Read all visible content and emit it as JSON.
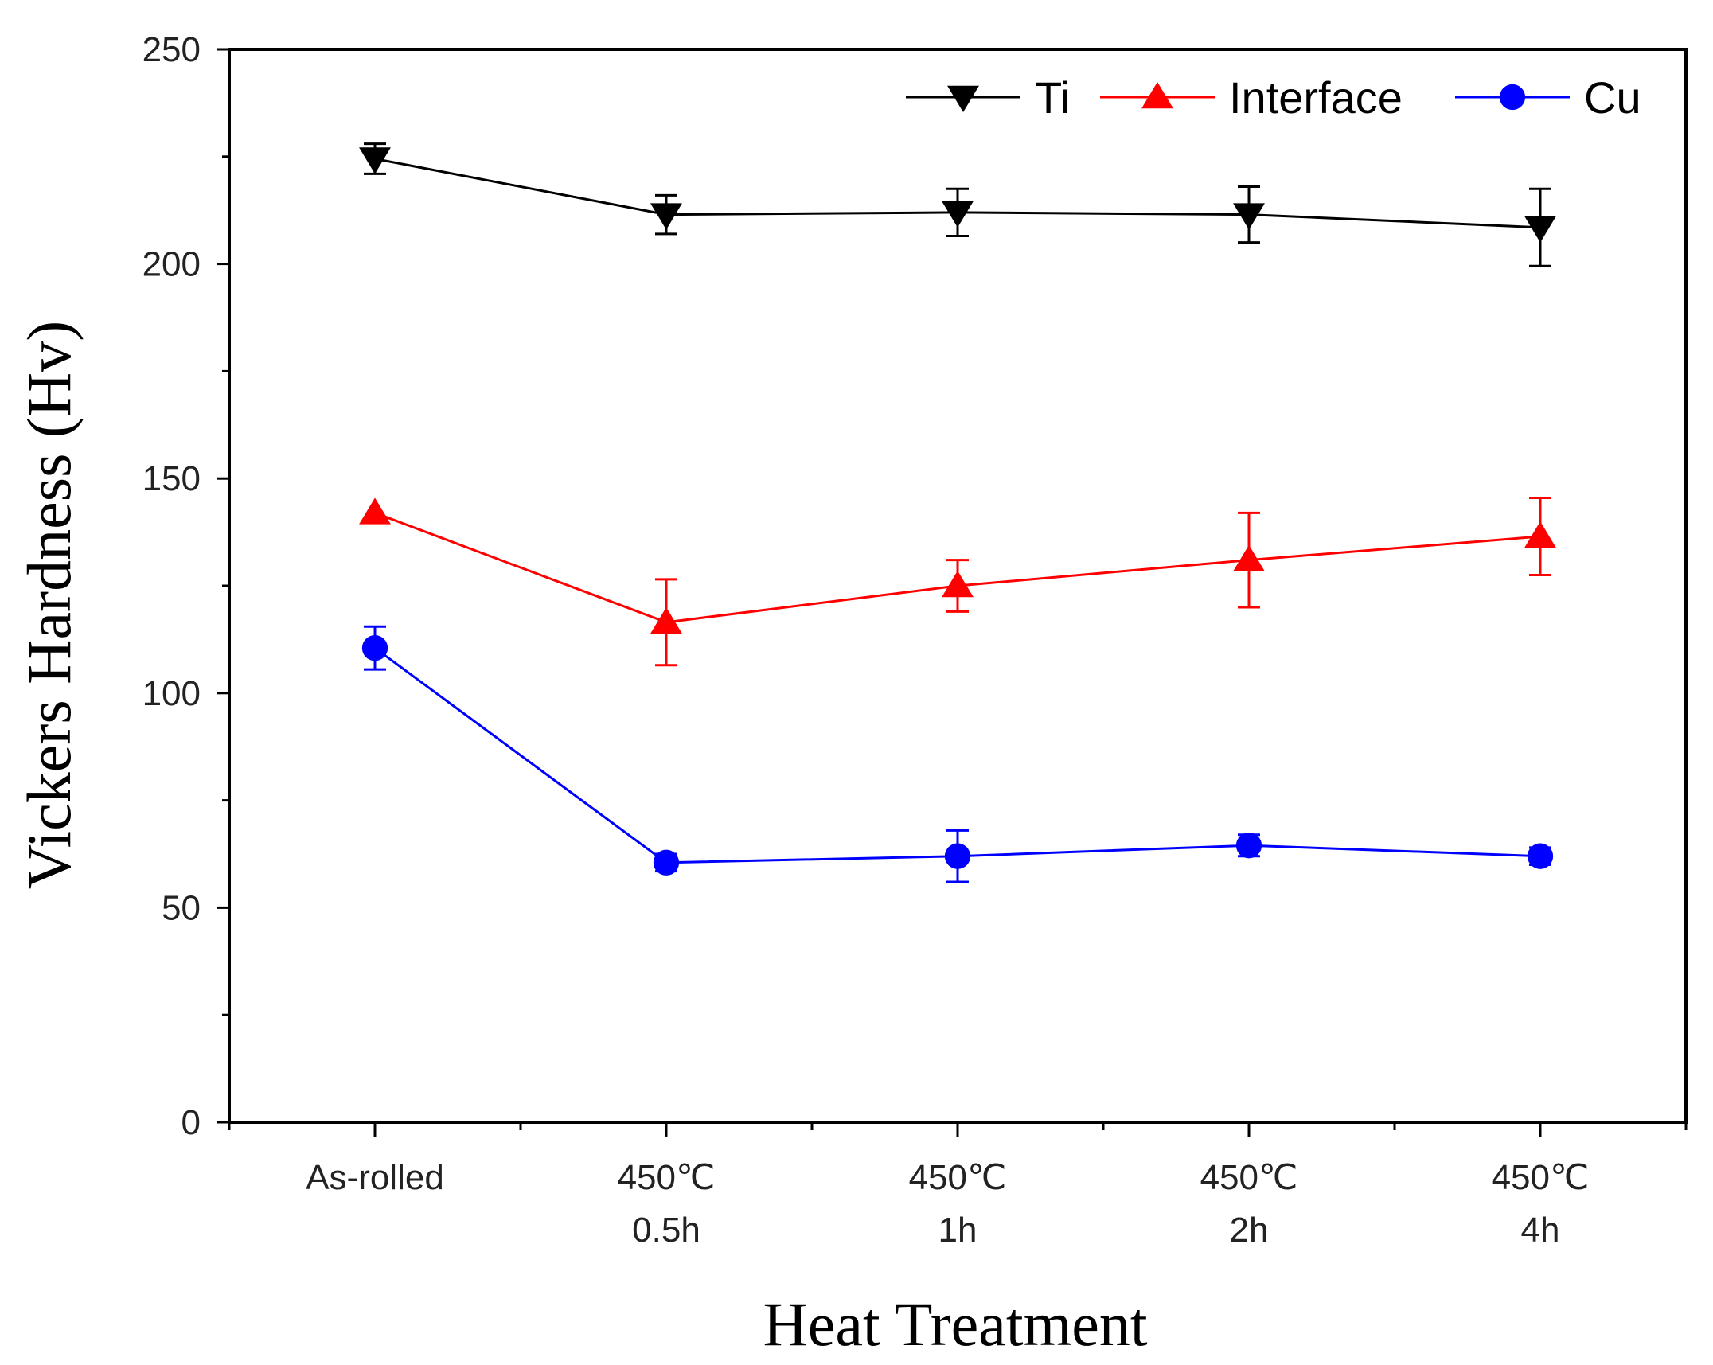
{
  "chart_data": {
    "type": "line",
    "title": "",
    "xlabel": "Heat Treatment",
    "ylabel": "Vickers Hardness (Hv)",
    "ylim": [
      0,
      250
    ],
    "yticks": [
      0,
      50,
      100,
      150,
      200,
      250
    ],
    "categories": [
      {
        "line1": "As-rolled",
        "line2": ""
      },
      {
        "line1": "450℃",
        "line2": "0.5h"
      },
      {
        "line1": "450℃",
        "line2": "1h"
      },
      {
        "line1": "450℃",
        "line2": "2h"
      },
      {
        "line1": "450℃",
        "line2": "4h"
      }
    ],
    "grid": false,
    "legend_position": "top-right",
    "series": [
      {
        "name": "Ti",
        "color": "#000000",
        "marker": "triangle-down",
        "values": [
          224.5,
          211.5,
          212,
          211.5,
          208.5
        ],
        "errors": [
          3.5,
          4.5,
          5.5,
          6.5,
          9
        ]
      },
      {
        "name": "Interface",
        "color": "#ff0000",
        "marker": "triangle-up",
        "values": [
          142,
          116.5,
          125,
          131,
          136.5
        ],
        "errors": [
          0,
          10,
          6,
          11,
          9
        ]
      },
      {
        "name": "Cu",
        "color": "#0000ff",
        "marker": "circle",
        "values": [
          110.5,
          60.5,
          62,
          64.5,
          62
        ],
        "errors": [
          5,
          2,
          6,
          2.5,
          2
        ]
      }
    ]
  }
}
